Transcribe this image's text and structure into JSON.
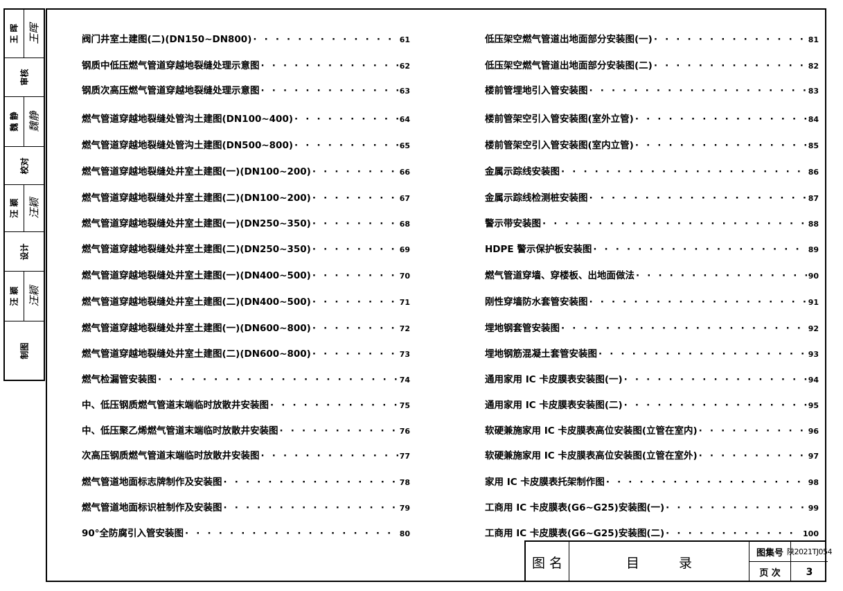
{
  "approval_strip": [
    {
      "role": "王 晖",
      "signature": "王晖"
    },
    {
      "role": "审核"
    },
    {
      "role": "魏 静",
      "signature": "魏静"
    },
    {
      "role": "校对"
    },
    {
      "role": "汪 颖",
      "signature": "汪颖"
    },
    {
      "role": "设计"
    },
    {
      "role": "汪 颖",
      "signature": "汪颖"
    },
    {
      "role": "制图"
    }
  ],
  "toc_left": [
    {
      "title": "阀门井室土建图(二)(DN150~DN800)",
      "page": "61"
    },
    {
      "title": "钢质中低压燃气管道穿越地裂缝处理示意图",
      "page": "62"
    },
    {
      "title": "钢质次高压燃气管道穿越地裂缝处理示意图",
      "page": "63"
    },
    {
      "title": "燃气管道穿越地裂缝处管沟土建图(DN100~400)",
      "page": "64"
    },
    {
      "title": "燃气管道穿越地裂缝处管沟土建图(DN500~800)",
      "page": "65"
    },
    {
      "title": "燃气管道穿越地裂缝处井室土建图(一)(DN100~200)",
      "page": "66"
    },
    {
      "title": "燃气管道穿越地裂缝处井室土建图(二)(DN100~200)",
      "page": "67"
    },
    {
      "title": "燃气管道穿越地裂缝处井室土建图(一)(DN250~350)",
      "page": "68"
    },
    {
      "title": "燃气管道穿越地裂缝处井室土建图(二)(DN250~350)",
      "page": "69"
    },
    {
      "title": "燃气管道穿越地裂缝处井室土建图(一)(DN400~500)",
      "page": "70"
    },
    {
      "title": "燃气管道穿越地裂缝处井室土建图(二)(DN400~500)",
      "page": "71"
    },
    {
      "title": "燃气管道穿越地裂缝处井室土建图(一)(DN600~800)",
      "page": "72"
    },
    {
      "title": "燃气管道穿越地裂缝处井室土建图(二)(DN600~800)",
      "page": "73"
    },
    {
      "title": "燃气检漏管安装图",
      "page": "74"
    },
    {
      "title": "中、低压钢质燃气管道末端临时放散井安装图",
      "page": "75"
    },
    {
      "title": "中、低压聚乙烯燃气管道末端临时放散井安装图",
      "page": "76"
    },
    {
      "title": "次高压钢质燃气管道末端临时放散井安装图",
      "page": "77"
    },
    {
      "title": "燃气管道地面标志牌制作及安装图",
      "page": "78"
    },
    {
      "title": "燃气管道地面标识桩制作及安装图",
      "page": "79"
    },
    {
      "title": "90°全防腐引入管安装图",
      "page": "80"
    }
  ],
  "toc_right": [
    {
      "title": "低压架空燃气管道出地面部分安装图(一)",
      "page": "81"
    },
    {
      "title": "低压架空燃气管道出地面部分安装图(二)",
      "page": "82"
    },
    {
      "title": "楼前管埋地引入管安装图",
      "page": "83"
    },
    {
      "title": "楼前管架空引入管安装图(室外立管)",
      "page": "84"
    },
    {
      "title": "楼前管架空引入管安装图(室内立管)",
      "page": "85"
    },
    {
      "title": "金属示踪线安装图",
      "page": "86"
    },
    {
      "title": "金属示踪线检测桩安装图",
      "page": "87"
    },
    {
      "title": "警示带安装图",
      "page": "88"
    },
    {
      "title": "HDPE 警示保护板安装图",
      "page": "89"
    },
    {
      "title": "燃气管道穿墙、穿楼板、出地面做法",
      "page": "90"
    },
    {
      "title": "刚性穿墙防水套管安装图",
      "page": "91"
    },
    {
      "title": "埋地钢套管安装图",
      "page": "92"
    },
    {
      "title": "埋地钢筋混凝土套管安装图",
      "page": "93"
    },
    {
      "title": "通用家用 IC 卡皮膜表安装图(一)",
      "page": "94"
    },
    {
      "title": "通用家用 IC 卡皮膜表安装图(二)",
      "page": "95"
    },
    {
      "title": "软硬兼施家用 IC 卡皮膜表高位安装图(立管在室内)",
      "page": "96"
    },
    {
      "title": "软硬兼施家用 IC 卡皮膜表高位安装图(立管在室外)",
      "page": "97"
    },
    {
      "title": "家用 IC 卡皮膜表托架制作图",
      "page": "98"
    },
    {
      "title": "工商用 IC 卡皮膜表(G6~G25)安装图(一)",
      "page": "99"
    },
    {
      "title": "工商用 IC 卡皮膜表(G6~G25)安装图(二)",
      "page": "100"
    }
  ],
  "title_block": {
    "name_label": "图 名",
    "name_value": "目　　　录",
    "atlas_label": "图集号",
    "atlas_value": "陕2021TJ054",
    "page_label": "页 次",
    "page_value": "3"
  }
}
